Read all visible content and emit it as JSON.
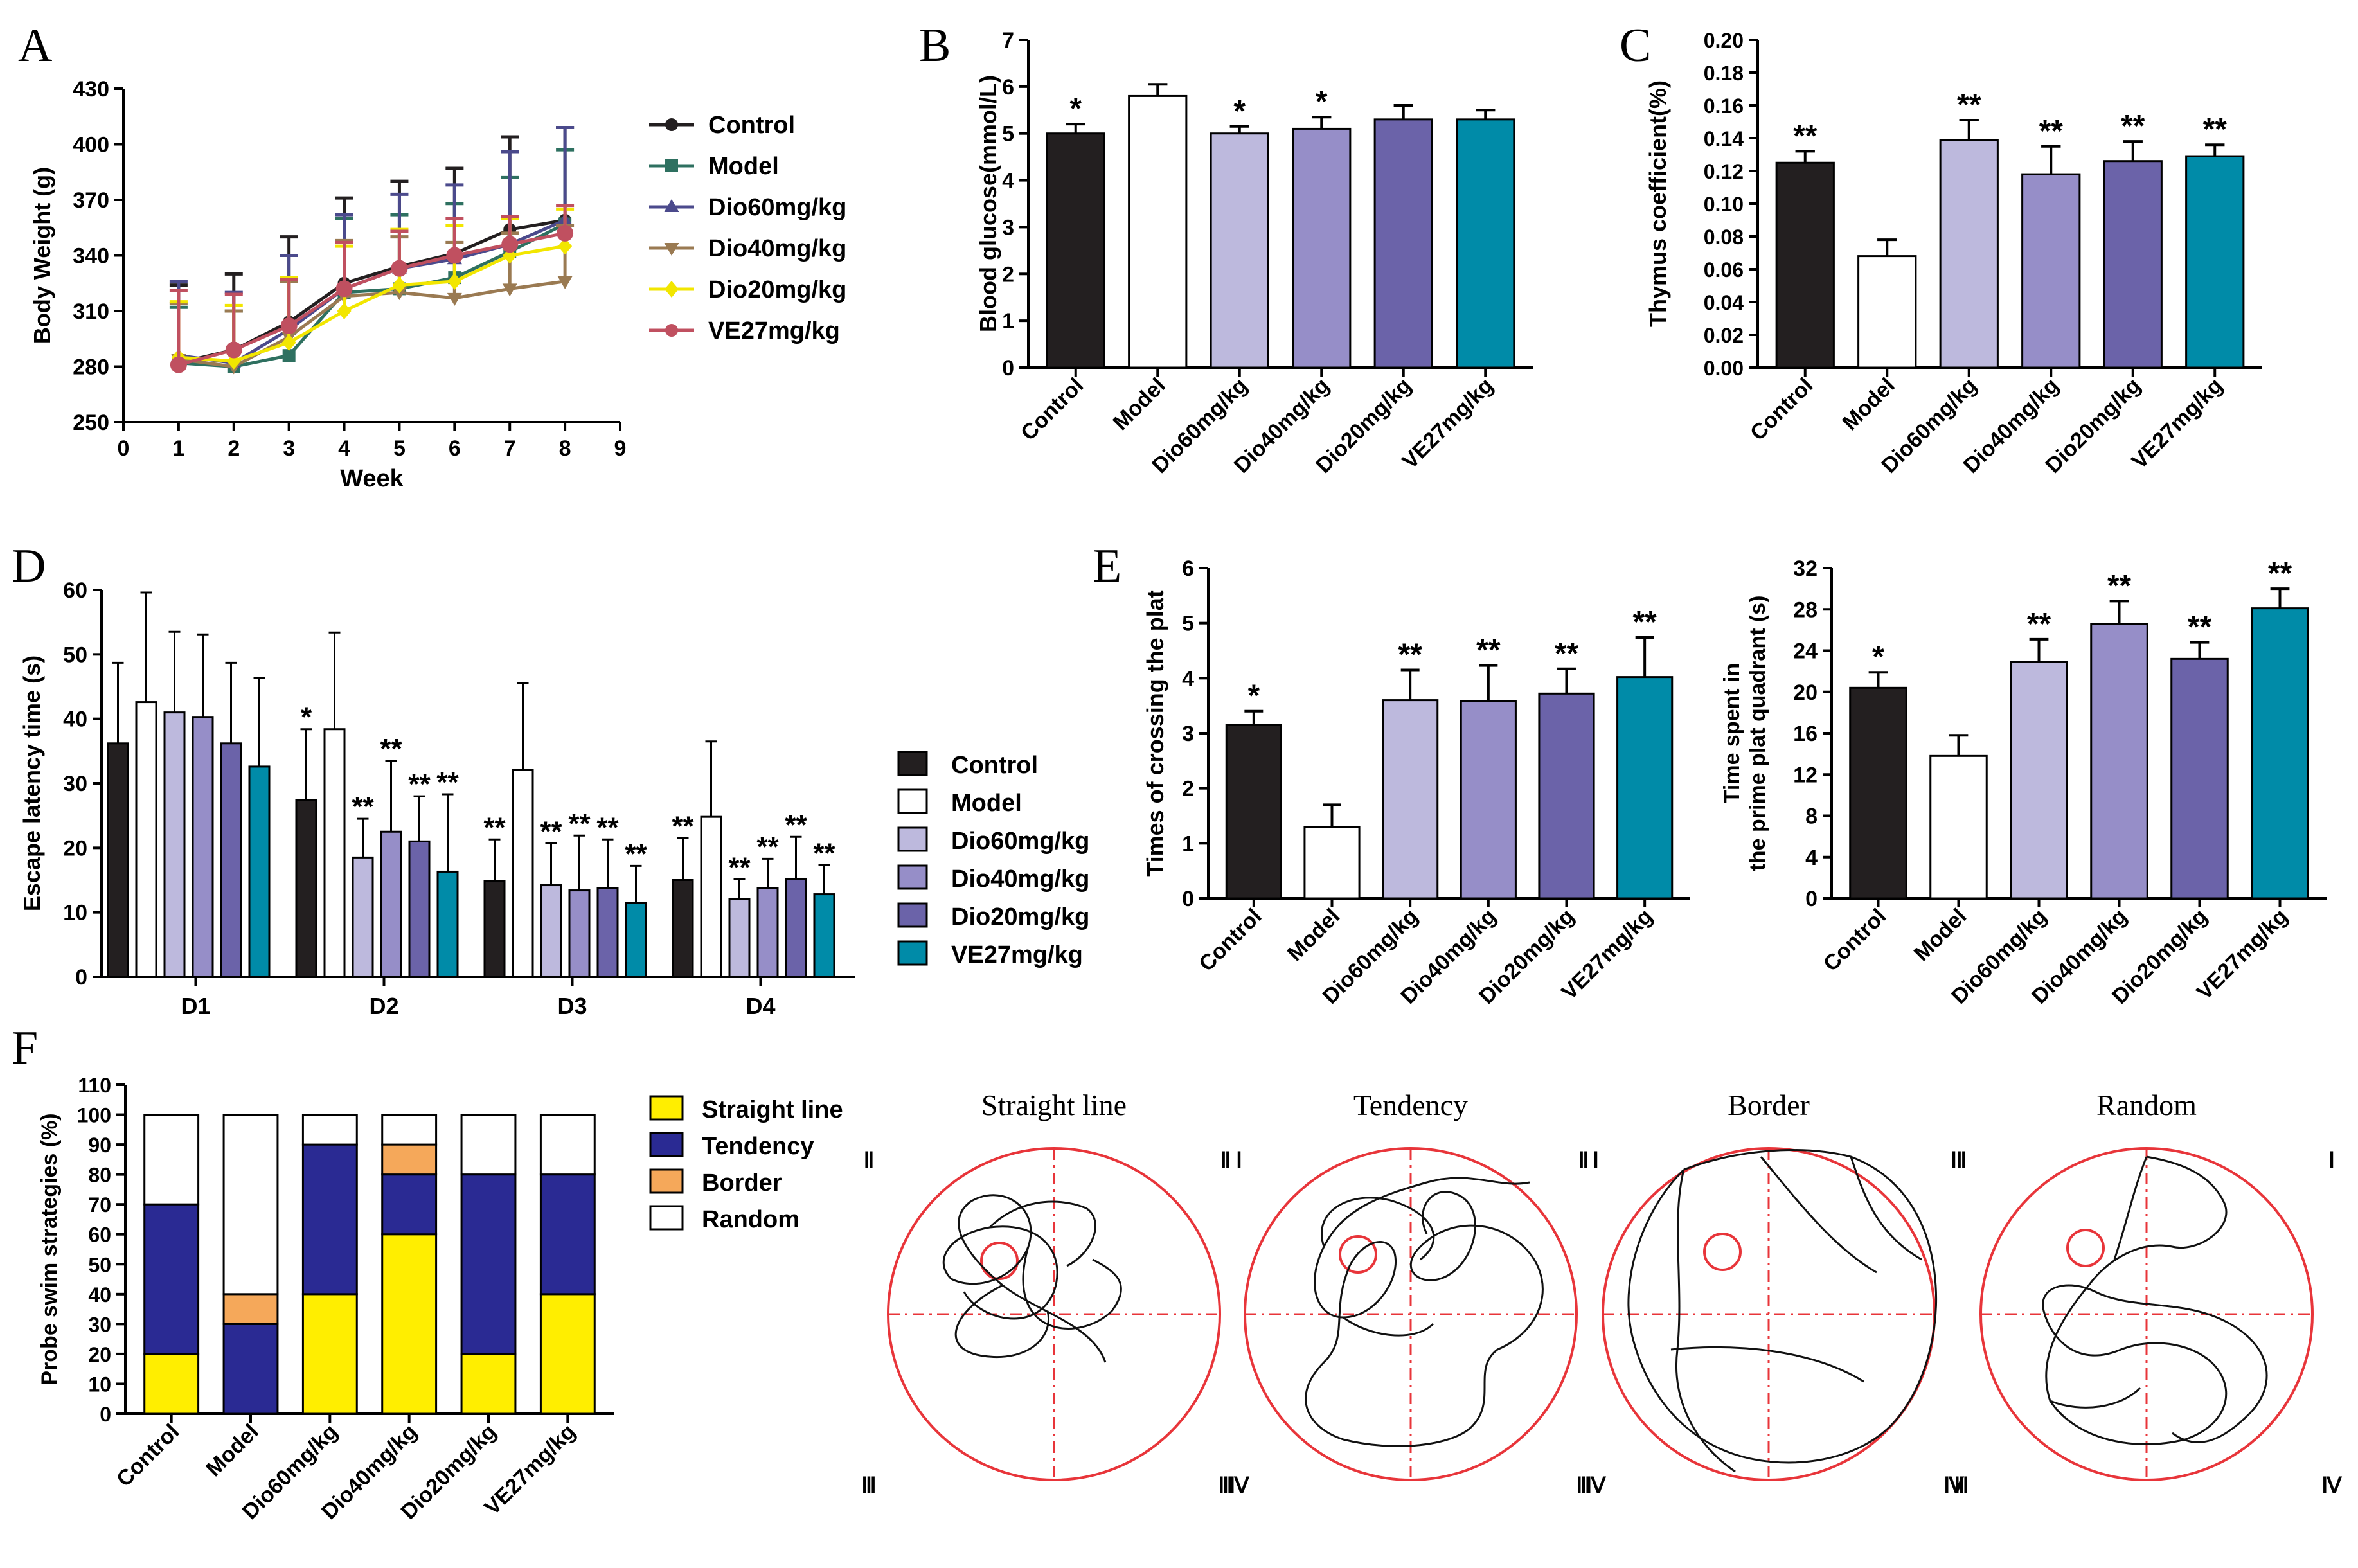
{
  "colors": {
    "Control": "#231f20",
    "Model": "#ffffff",
    "Dio60mg/kg": "#bdb9dd",
    "Dio40mg/kg": "#968ec8",
    "Dio20mg/kg": "#6b63a9",
    "VE27mg/kg": "#008ba8",
    "Straight line": "#ffee00",
    "Tendency": "#2a2a93",
    "Border": "#f5a85a",
    "Random": "#ffffff",
    "circle": "#e8353a"
  },
  "panel_labels": {
    "A": "A",
    "B": "B",
    "C": "C",
    "D": "D",
    "E": "E",
    "F": "F"
  },
  "chart_data": [
    {
      "id": "A",
      "type": "line",
      "title": "",
      "xlabel": "Week",
      "ylabel": "Body Weight (g)",
      "xlim": [
        0,
        9
      ],
      "ylim": [
        250,
        430
      ],
      "xticks": [
        "0",
        "1",
        "2",
        "3",
        "4",
        "5",
        "6",
        "7",
        "8",
        "9"
      ],
      "yticks": [
        "250",
        "280",
        "310",
        "340",
        "370",
        "400",
        "430"
      ],
      "x": [
        1,
        2,
        3,
        4,
        5,
        6,
        7,
        8
      ],
      "series": [
        {
          "name": "Control",
          "marker": "circle",
          "color": "#231f20",
          "values": [
            282,
            289,
            304,
            325,
            334,
            341,
            354,
            359
          ],
          "err": [
            42,
            41,
            46,
            46,
            46,
            46,
            50,
            50
          ]
        },
        {
          "name": "Model",
          "marker": "square",
          "color": "#2e7060",
          "values": [
            282,
            280,
            286,
            320,
            322,
            328,
            342,
            357
          ],
          "err": [
            30,
            30,
            40,
            40,
            40,
            40,
            40,
            40
          ]
        },
        {
          "name": "Dio60mg/kg",
          "marker": "triangle-up",
          "color": "#4b4a8c",
          "values": [
            286,
            282,
            300,
            322,
            333,
            338,
            346,
            359
          ],
          "err": [
            40,
            38,
            40,
            40,
            40,
            40,
            50,
            50
          ]
        },
        {
          "name": "Dio40mg/kg",
          "marker": "triangle-down",
          "color": "#9a7a52",
          "values": [
            284,
            280,
            296,
            318,
            320,
            317,
            322,
            326
          ],
          "err": [
            30,
            30,
            30,
            30,
            30,
            30,
            30,
            30
          ]
        },
        {
          "name": "Dio20mg/kg",
          "marker": "diamond",
          "color": "#f2e600",
          "values": [
            285,
            283,
            293,
            310,
            324,
            326,
            340,
            345
          ],
          "err": [
            30,
            30,
            35,
            35,
            30,
            30,
            20,
            20
          ]
        },
        {
          "name": "VE27mg/kg",
          "marker": "circle",
          "color": "#c05060",
          "values": [
            281,
            289,
            302,
            322,
            333,
            340,
            346,
            352
          ],
          "err": [
            40,
            30,
            25,
            25,
            20,
            20,
            15,
            15
          ]
        }
      ]
    },
    {
      "id": "B",
      "type": "bar",
      "title": "",
      "xlabel": "",
      "ylabel": "Blood glucose(mmol/L)",
      "ylim": [
        0,
        7
      ],
      "yticks": [
        "0",
        "1",
        "2",
        "3",
        "4",
        "5",
        "6",
        "7"
      ],
      "categories": [
        "Control",
        "Model",
        "Dio60mg/kg",
        "Dio40mg/kg",
        "Dio20mg/kg",
        "VE27mg/kg"
      ],
      "values": [
        5.0,
        5.8,
        5.0,
        5.1,
        5.3,
        5.3
      ],
      "err": [
        0.2,
        0.25,
        0.15,
        0.25,
        0.3,
        0.2
      ],
      "annotations": [
        "*",
        "",
        "*",
        "*",
        "",
        ""
      ]
    },
    {
      "id": "C",
      "type": "bar",
      "title": "",
      "xlabel": "",
      "ylabel": "Thymus coefficient(%)",
      "ylim": [
        0,
        0.2
      ],
      "yticks": [
        "0.00",
        "0.02",
        "0.04",
        "0.06",
        "0.08",
        "0.10",
        "0.12",
        "0.14",
        "0.16",
        "0.18",
        "0.20"
      ],
      "categories": [
        "Control",
        "Model",
        "Dio60mg/kg",
        "Dio40mg/kg",
        "Dio20mg/kg",
        "VE27mg/kg"
      ],
      "values": [
        0.125,
        0.068,
        0.139,
        0.118,
        0.126,
        0.129
      ],
      "err": [
        0.007,
        0.01,
        0.012,
        0.017,
        0.012,
        0.007
      ],
      "annotations": [
        "**",
        "",
        "**",
        "**",
        "**",
        "**"
      ]
    },
    {
      "id": "D",
      "type": "bar",
      "title": "",
      "xlabel": "",
      "ylabel": "Escape latency time (s)",
      "ylim": [
        0,
        60
      ],
      "yticks": [
        "0",
        "10",
        "20",
        "30",
        "40",
        "50",
        "60"
      ],
      "categories": [
        "D1",
        "D2",
        "D3",
        "D4"
      ],
      "series": [
        {
          "name": "Control",
          "values": [
            36.2,
            27.4,
            14.8,
            15.0
          ],
          "err": [
            12.5,
            11.0,
            6.5,
            6.5
          ],
          "annotations": [
            "",
            "*",
            "**",
            "**"
          ]
        },
        {
          "name": "Model",
          "values": [
            42.6,
            38.4,
            32.1,
            24.8
          ],
          "err": [
            17.0,
            15.0,
            13.5,
            11.7
          ],
          "annotations": [
            "",
            "",
            "",
            ""
          ]
        },
        {
          "name": "Dio60mg/kg",
          "values": [
            41.0,
            18.5,
            14.2,
            12.1
          ],
          "err": [
            12.5,
            6.0,
            6.5,
            3.0
          ],
          "annotations": [
            "",
            "**",
            "**",
            "**"
          ]
        },
        {
          "name": "Dio40mg/kg",
          "values": [
            40.3,
            22.5,
            13.4,
            13.8
          ],
          "err": [
            12.8,
            11.0,
            8.5,
            4.5
          ],
          "annotations": [
            "",
            "**",
            "**",
            "**"
          ]
        },
        {
          "name": "Dio20mg/kg",
          "values": [
            36.2,
            21.0,
            13.8,
            15.2
          ],
          "err": [
            12.5,
            7.0,
            7.5,
            6.5
          ],
          "annotations": [
            "",
            "**",
            "**",
            "**"
          ]
        },
        {
          "name": "VE27mg/kg",
          "values": [
            32.6,
            16.3,
            11.5,
            12.8
          ],
          "err": [
            13.8,
            12.0,
            5.7,
            4.5
          ],
          "annotations": [
            "",
            "**",
            "**",
            "**"
          ]
        }
      ]
    },
    {
      "id": "E1",
      "type": "bar",
      "title": "",
      "xlabel": "",
      "ylabel": "Times of crossing the plat",
      "ylim": [
        0,
        6
      ],
      "yticks": [
        "0",
        "1",
        "2",
        "3",
        "4",
        "5",
        "6"
      ],
      "categories": [
        "Control",
        "Model",
        "Dio60mg/kg",
        "Dio40mg/kg",
        "Dio20mg/kg",
        "VE27mg/kg"
      ],
      "values": [
        3.15,
        1.3,
        3.6,
        3.58,
        3.72,
        4.02
      ],
      "err": [
        0.25,
        0.4,
        0.55,
        0.65,
        0.45,
        0.72
      ],
      "annotations": [
        "*",
        "",
        "**",
        "**",
        "**",
        "**"
      ]
    },
    {
      "id": "E2",
      "type": "bar",
      "title": "",
      "xlabel": "",
      "ylabel": "Time spent in the prime plat quadrant (s)",
      "ylabel_lines": [
        "Time spent in",
        "the prime plat quadrant (s)"
      ],
      "ylim": [
        0,
        32
      ],
      "yticks": [
        "0",
        "4",
        "8",
        "12",
        "16",
        "20",
        "24",
        "28",
        "32"
      ],
      "categories": [
        "Control",
        "Model",
        "Dio60mg/kg",
        "Dio40mg/kg",
        "Dio20mg/kg",
        "VE27mg/kg"
      ],
      "values": [
        20.4,
        13.8,
        22.9,
        26.6,
        23.2,
        28.1
      ],
      "err": [
        1.5,
        2.0,
        2.2,
        2.2,
        1.6,
        1.9
      ],
      "annotations": [
        "*",
        "",
        "**",
        "**",
        "**",
        "**"
      ]
    },
    {
      "id": "F",
      "type": "bar",
      "stacked": true,
      "title": "",
      "xlabel": "",
      "ylabel": "Probe swim strategies (%)",
      "ylim": [
        0,
        110
      ],
      "yticks": [
        "0",
        "10",
        "20",
        "30",
        "40",
        "50",
        "60",
        "70",
        "80",
        "90",
        "100",
        "110"
      ],
      "categories": [
        "Control",
        "Model",
        "Dio60mg/kg",
        "Dio40mg/kg",
        "Dio20mg/kg",
        "VE27mg/kg"
      ],
      "series": [
        {
          "name": "Straight line",
          "values": [
            20,
            0,
            40,
            60,
            20,
            40
          ]
        },
        {
          "name": "Tendency",
          "values": [
            50,
            30,
            50,
            20,
            60,
            40
          ]
        },
        {
          "name": "Border",
          "values": [
            0,
            10,
            0,
            10,
            0,
            0
          ]
        },
        {
          "name": "Random",
          "values": [
            30,
            60,
            10,
            10,
            20,
            20
          ]
        }
      ]
    }
  ],
  "swim_paths": {
    "titles": [
      "Straight line",
      "Tendency",
      "Border",
      "Random"
    ],
    "quadrants": {
      "q2": "Ⅱ",
      "q1": "Ⅰ",
      "q3": "Ⅲ",
      "q4": "Ⅳ"
    }
  }
}
